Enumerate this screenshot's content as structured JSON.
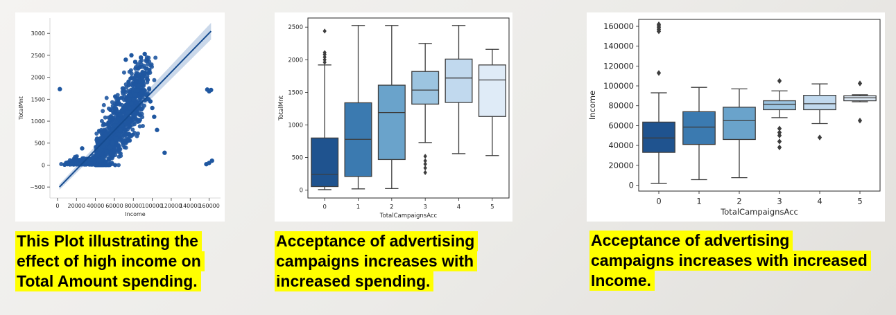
{
  "chart_data": [
    {
      "type": "scatter",
      "title": "",
      "xlabel": "Income",
      "ylabel": "TotalMnt",
      "xlim": [
        -8000,
        172000
      ],
      "ylim": [
        -750,
        3350
      ],
      "xticks": [
        0,
        20000,
        40000,
        60000,
        80000,
        100000,
        120000,
        140000,
        160000
      ],
      "xtick_labels": [
        "0",
        "20000",
        "40000",
        "60000",
        "80000",
        "100000",
        "120000",
        "140000",
        "160000"
      ],
      "yticks": [
        -500,
        0,
        500,
        1000,
        1500,
        2000,
        2500,
        3000
      ],
      "ytick_labels": [
        "−500",
        "0",
        "500",
        "1000",
        "1500",
        "2000",
        "2500",
        "3000"
      ],
      "regression_line": {
        "x": [
          2000,
          162000
        ],
        "y": [
          -500,
          3050
        ]
      },
      "points": {
        "x": [
          2447,
          7500,
          10000,
          13000,
          15000,
          18000,
          20000,
          22000,
          25000,
          26000,
          28000,
          30000,
          32000,
          34000,
          36000,
          38000,
          40000,
          42000,
          44000,
          46000,
          48000,
          50000,
          52000,
          54000,
          56000,
          58000,
          60000,
          62000,
          64000,
          66000,
          68000,
          70000,
          72000,
          74000,
          76000,
          78000,
          80000,
          82000,
          84000,
          86000,
          88000,
          90000,
          92000,
          94000,
          96000,
          98000,
          100000,
          102000,
          105000,
          113000,
          157000,
          158000,
          160000,
          160000,
          162000,
          163000,
          45000,
          48000,
          52000,
          55000,
          58000,
          62000,
          65000,
          66000,
          68000,
          70000,
          72000,
          74000,
          76000,
          78000,
          80000,
          82000,
          84000,
          86000,
          88000,
          90000,
          92000,
          94000,
          60000,
          64000,
          70000,
          75000,
          85000,
          72000,
          78000,
          82000,
          88000,
          92000,
          96000,
          56000
        ],
        "y": [
          1730,
          10,
          30,
          15,
          20,
          25,
          40,
          30,
          20,
          380,
          45,
          50,
          60,
          80,
          120,
          150,
          200,
          260,
          300,
          350,
          420,
          500,
          550,
          650,
          700,
          820,
          900,
          1000,
          1050,
          1150,
          1250,
          1300,
          1350,
          1450,
          1500,
          1600,
          1650,
          1700,
          1750,
          1800,
          1850,
          1900,
          1700,
          1600,
          1500,
          1450,
          1300,
          1100,
          800,
          280,
          20,
          1720,
          1680,
          50,
          1710,
          100,
          100,
          150,
          300,
          400,
          500,
          600,
          700,
          800,
          900,
          1000,
          1100,
          1200,
          1300,
          1400,
          1500,
          1600,
          1700,
          1800,
          1900,
          2000,
          2100,
          2200,
          1300,
          1500,
          1700,
          1900,
          2200,
          2400,
          2500,
          2350,
          2450,
          2530,
          2100,
          1100
        ]
      }
    },
    {
      "type": "box",
      "title": "",
      "xlabel": "TotalCampaignsAcc",
      "ylabel": "TotalMnt",
      "categories": [
        "0",
        "1",
        "2",
        "3",
        "4",
        "5"
      ],
      "ylim": [
        -120,
        2640
      ],
      "yticks": [
        0,
        500,
        1000,
        1500,
        2000,
        2500
      ],
      "ytick_labels": [
        "0",
        "500",
        "1000",
        "1500",
        "2000",
        "2500"
      ],
      "colors": [
        "#1f538f",
        "#3b7ab0",
        "#6aa3cb",
        "#9cc4e0",
        "#c1d9ee",
        "#dfebf7"
      ],
      "boxes": [
        {
          "whislo": 8,
          "q1": 55,
          "med": 245,
          "q3": 800,
          "whishi": 1920,
          "fliers": [
            1960,
            2000,
            2040,
            2080,
            2110,
            2440
          ]
        },
        {
          "whislo": 20,
          "q1": 210,
          "med": 780,
          "q3": 1340,
          "whishi": 2525,
          "fliers": []
        },
        {
          "whislo": 25,
          "q1": 470,
          "med": 1190,
          "q3": 1610,
          "whishi": 2525,
          "fliers": []
        },
        {
          "whislo": 730,
          "q1": 1320,
          "med": 1535,
          "q3": 1820,
          "whishi": 2250,
          "fliers": [
            270,
            340,
            400,
            450,
            520
          ]
        },
        {
          "whislo": 560,
          "q1": 1345,
          "med": 1720,
          "q3": 2010,
          "whishi": 2525,
          "fliers": []
        },
        {
          "whislo": 530,
          "q1": 1130,
          "med": 1690,
          "q3": 1920,
          "whishi": 2160,
          "fliers": []
        }
      ]
    },
    {
      "type": "box",
      "title": "",
      "xlabel": "TotalCampaignsAcc",
      "ylabel": "Income",
      "categories": [
        "0",
        "1",
        "2",
        "3",
        "4",
        "5"
      ],
      "ylim": [
        -6000,
        167000
      ],
      "yticks": [
        0,
        20000,
        40000,
        60000,
        80000,
        100000,
        120000,
        140000,
        160000
      ],
      "ytick_labels": [
        "0",
        "20000",
        "40000",
        "60000",
        "80000",
        "100000",
        "120000",
        "140000",
        "160000"
      ],
      "colors": [
        "#1f538f",
        "#3b7ab0",
        "#6aa3cb",
        "#9cc4e0",
        "#c1d9ee",
        "#dfebf7"
      ],
      "boxes": [
        {
          "whislo": 1730,
          "q1": 33000,
          "med": 47500,
          "q3": 63500,
          "whishi": 93000,
          "fliers": [
            113000,
            155000,
            157000,
            159000,
            160500,
            162000
          ]
        },
        {
          "whislo": 5500,
          "q1": 41000,
          "med": 58500,
          "q3": 74000,
          "whishi": 98500,
          "fliers": []
        },
        {
          "whislo": 7500,
          "q1": 46000,
          "med": 65000,
          "q3": 78500,
          "whishi": 97000,
          "fliers": []
        },
        {
          "whislo": 68000,
          "q1": 76000,
          "med": 81500,
          "q3": 85000,
          "whishi": 95000,
          "fliers": [
            38000,
            44000,
            50000,
            53000,
            57000,
            105000
          ]
        },
        {
          "whislo": 62000,
          "q1": 76000,
          "med": 82000,
          "q3": 90500,
          "whishi": 102000,
          "fliers": [
            48000
          ]
        },
        {
          "whislo": 84000,
          "q1": 85000,
          "med": 88000,
          "q3": 90000,
          "whishi": 91000,
          "fliers": [
            65000,
            102500
          ]
        }
      ]
    }
  ],
  "captions": [
    [
      "This Plot illustrating the",
      "effect of high income on",
      "Total Amount spending."
    ],
    [
      "Acceptance of advertising",
      "campaigns increases with",
      "increased spending."
    ],
    [
      "Acceptance of advertising",
      "campaigns increases with increased",
      "Income."
    ]
  ]
}
